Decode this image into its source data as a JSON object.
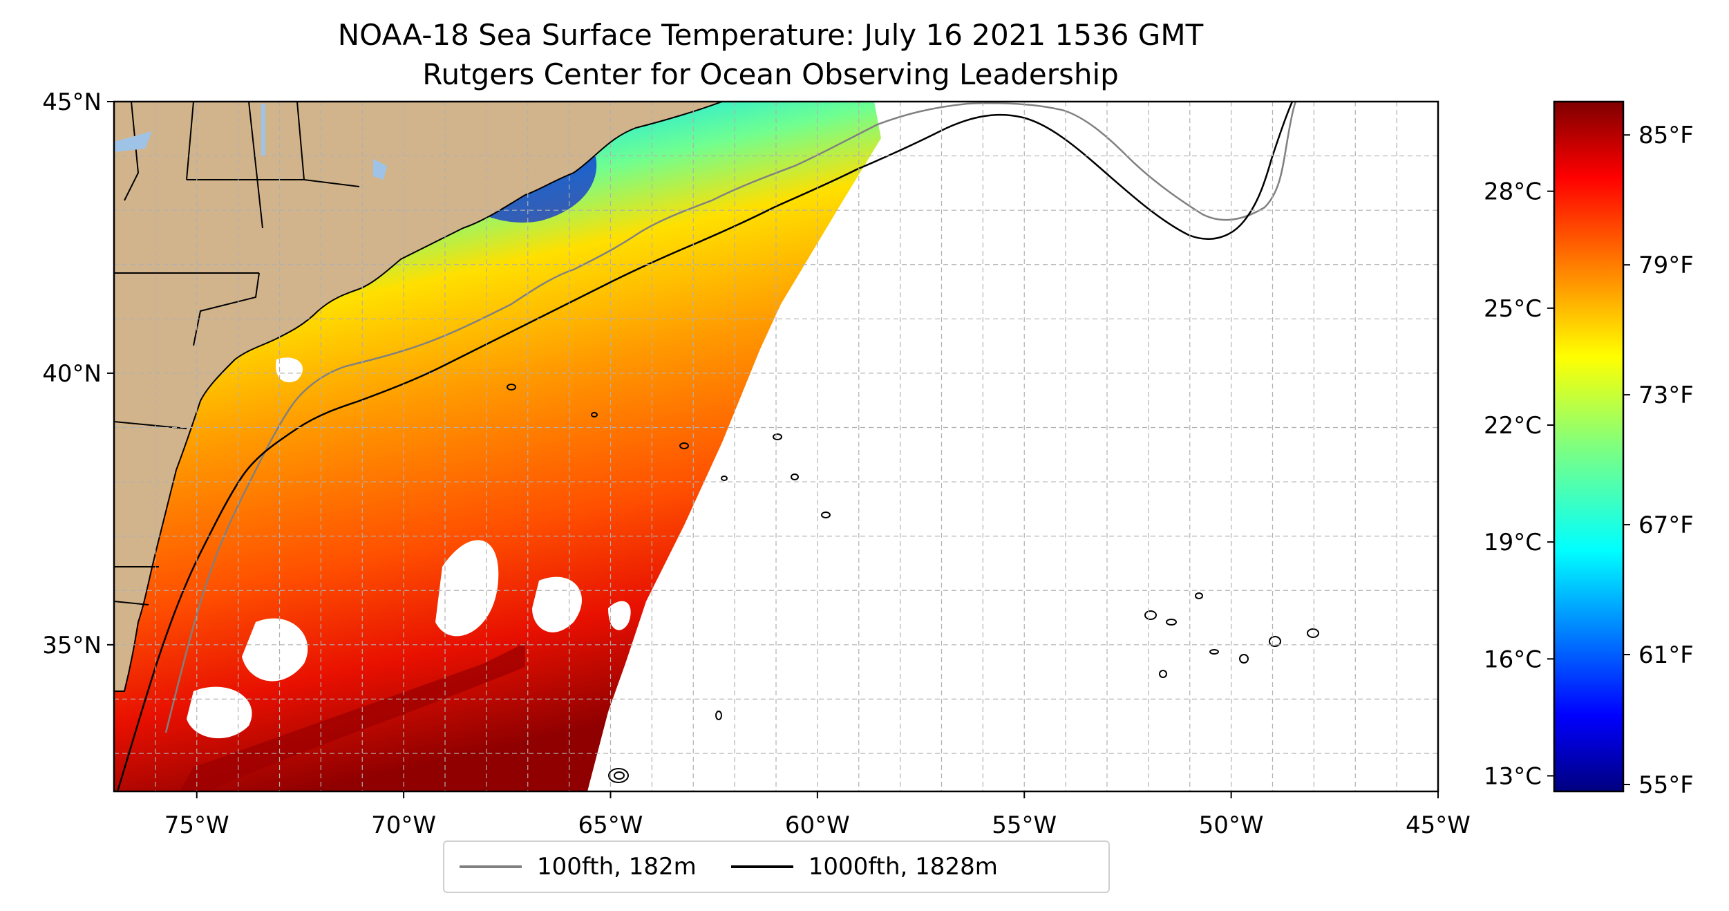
{
  "title": {
    "line1": "NOAA-18 Sea Surface Temperature: July 16 2021 1536 GMT",
    "line2": "Rutgers Center for Ocean Observing Leadership"
  },
  "map": {
    "lon_range": [
      -77,
      -45
    ],
    "lat_range": [
      32.3,
      45
    ],
    "lon_ticks": [
      {
        "value": -75,
        "label": "75°W"
      },
      {
        "value": -70,
        "label": "70°W"
      },
      {
        "value": -65,
        "label": "65°W"
      },
      {
        "value": -60,
        "label": "60°W"
      },
      {
        "value": -55,
        "label": "55°W"
      },
      {
        "value": -50,
        "label": "50°W"
      },
      {
        "value": -45,
        "label": "45°W"
      }
    ],
    "lat_ticks": [
      {
        "value": 35,
        "label": "35°N"
      },
      {
        "value": 40,
        "label": "40°N"
      },
      {
        "value": 45,
        "label": "45°N"
      }
    ],
    "gridlines": "dashed, 1 degree",
    "colors": {
      "land": "#d2b48c",
      "water_features": "#9ec3e6",
      "isobath_100": "#808080",
      "isobath_1000": "#000000",
      "grid": "#b0b0b0"
    }
  },
  "legend": {
    "items": [
      {
        "label": "100fth, 182m",
        "color": "#808080"
      },
      {
        "label": "1000fth, 1828m",
        "color": "#000000"
      }
    ]
  },
  "colorbar": {
    "colormap": "jet",
    "range_c": [
      12.6,
      30.3
    ],
    "celsius_ticks": [
      {
        "value": 13,
        "label": "13°C"
      },
      {
        "value": 16,
        "label": "16°C"
      },
      {
        "value": 19,
        "label": "19°C"
      },
      {
        "value": 22,
        "label": "22°C"
      },
      {
        "value": 25,
        "label": "25°C"
      },
      {
        "value": 28,
        "label": "28°C"
      }
    ],
    "fahrenheit_ticks": [
      {
        "value": 55,
        "label": "55°F"
      },
      {
        "value": 61,
        "label": "61°F"
      },
      {
        "value": 67,
        "label": "67°F"
      },
      {
        "value": 73,
        "label": "73°F"
      },
      {
        "value": 79,
        "label": "79°F"
      },
      {
        "value": 85,
        "label": "85°F"
      }
    ]
  }
}
